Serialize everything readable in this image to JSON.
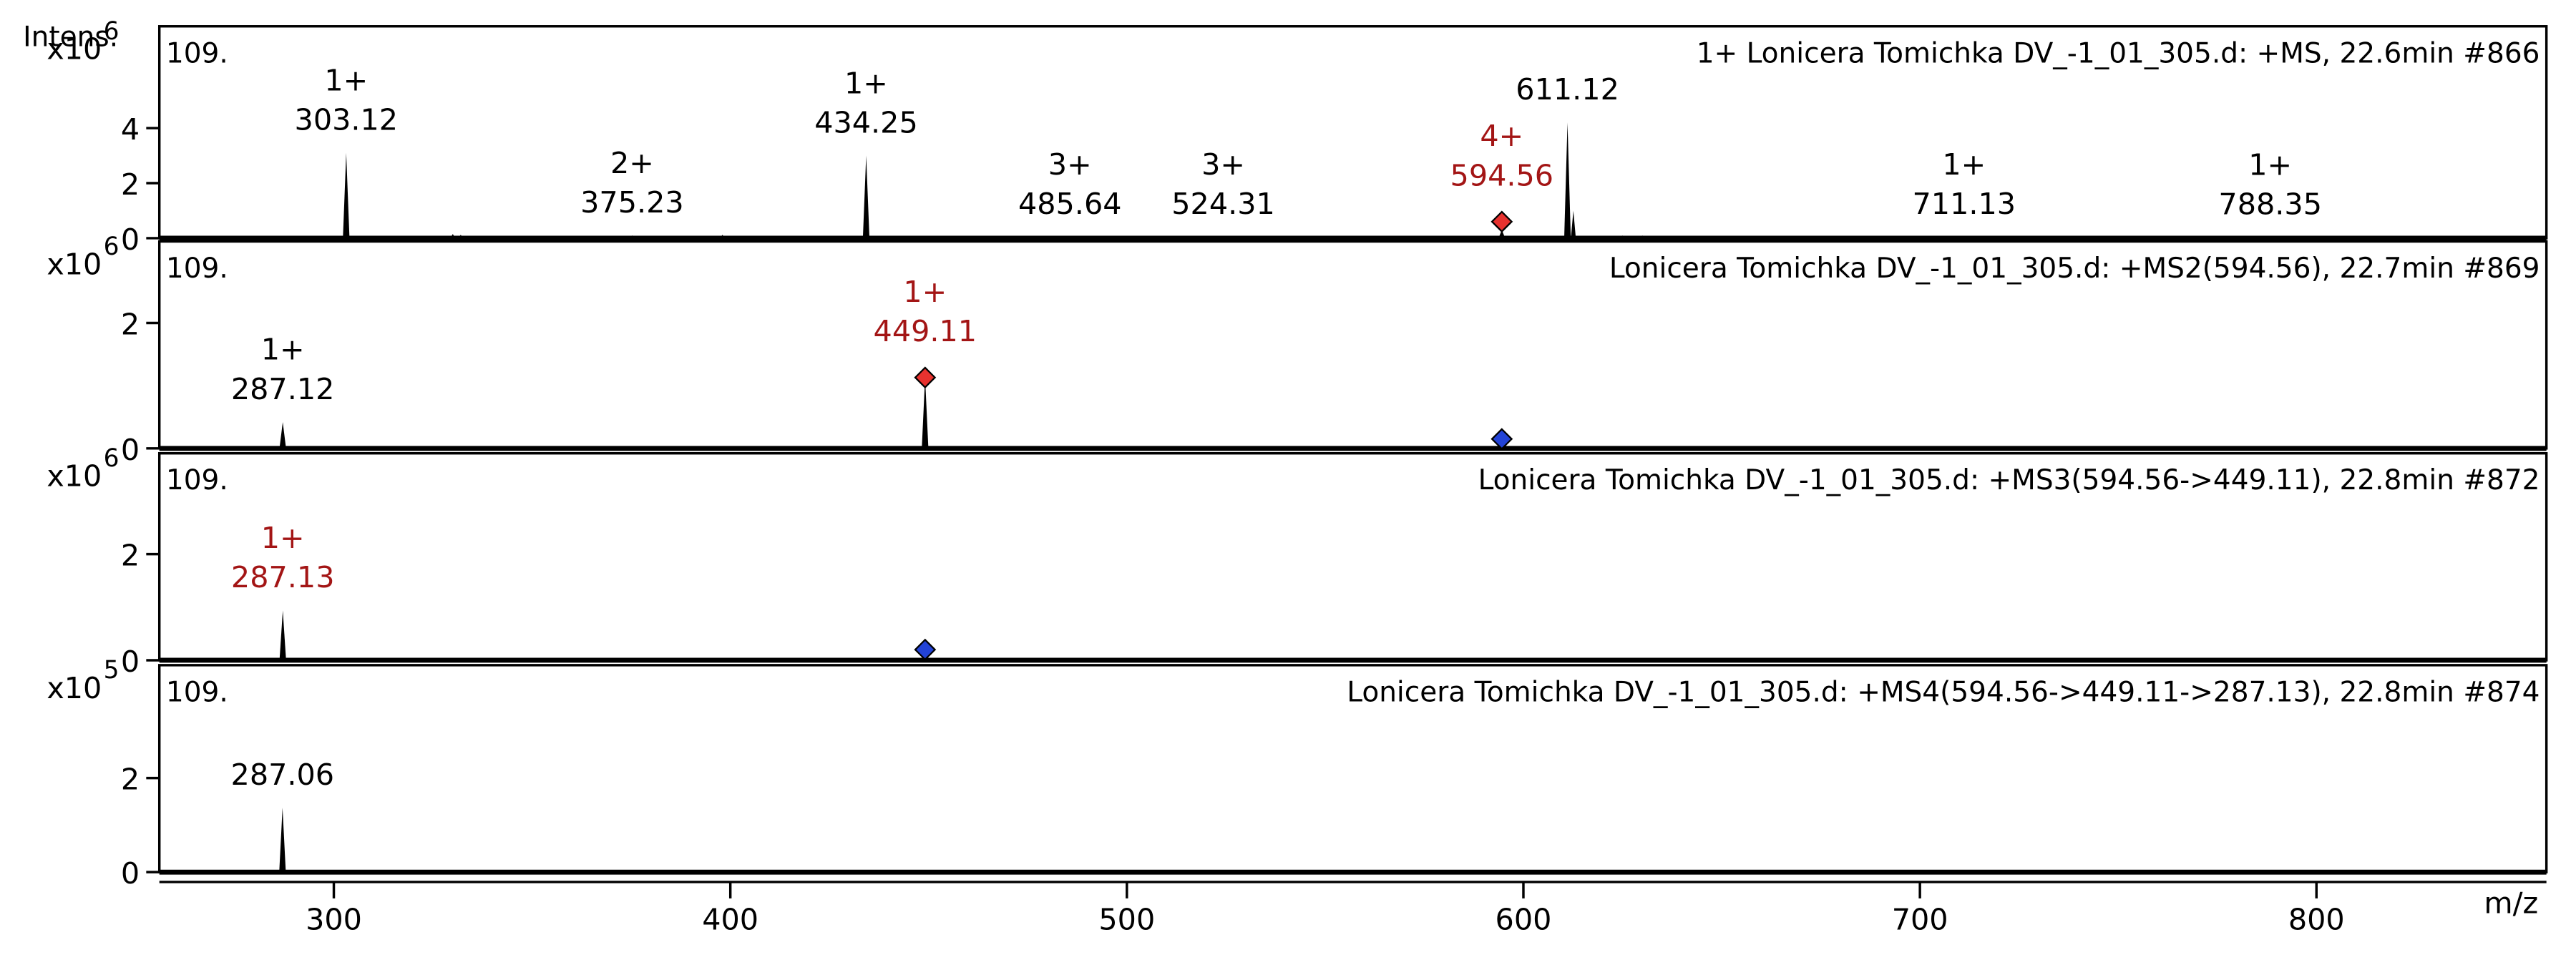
{
  "chart_data": {
    "type": "spectrum",
    "y_label": "Intens.",
    "x_label": "m/z",
    "xlim": [
      256,
      858
    ],
    "xticks": [
      300,
      400,
      500,
      600,
      700,
      800
    ],
    "panels": [
      {
        "title": "1+ Lonicera Tomichka DV_-1_01_305.d: +MS, 22.6min #866",
        "corner_label": "109.",
        "scale_base": "x10",
        "scale_exponent": 6,
        "ylim": [
          0,
          7.7
        ],
        "yticks": [
          0,
          2,
          4
        ],
        "peaks": [
          {
            "mz": 303.12,
            "intensity": 3.1,
            "charge": "1+"
          },
          {
            "mz": 375.23,
            "intensity": 0.1,
            "charge": "2+"
          },
          {
            "mz": 434.25,
            "intensity": 3.0,
            "charge": "1+"
          },
          {
            "mz": 485.64,
            "intensity": 0.05,
            "charge": "3+"
          },
          {
            "mz": 524.31,
            "intensity": 0.05,
            "charge": "3+"
          },
          {
            "mz": 594.56,
            "intensity": 0.3,
            "charge": "4+",
            "label_color": "#a31515"
          },
          {
            "mz": 611.12,
            "intensity": 4.2
          },
          {
            "mz": 711.13,
            "intensity": 0.05,
            "charge": "1+"
          },
          {
            "mz": 788.35,
            "intensity": 0.03,
            "charge": "1+"
          }
        ],
        "minor_peaks": {
          "mz": [
            294,
            330,
            332,
            345,
            361,
            368,
            398,
            440,
            450,
            462,
            480,
            495,
            540,
            556,
            560,
            575,
            585,
            612.6,
            625,
            630,
            648,
            672
          ],
          "intensity": [
            0.08,
            0.15,
            0.12,
            0.06,
            0.06,
            0.08,
            0.12,
            0.08,
            0.06,
            0.05,
            0.06,
            0.05,
            0.05,
            0.06,
            0.06,
            0.05,
            0.05,
            1.0,
            0.1,
            0.1,
            0.06,
            0.05
          ]
        },
        "markers": [
          {
            "mz": 594.56,
            "intensity": 0.6,
            "color": "#e8322f"
          }
        ]
      },
      {
        "title": "Lonicera Tomichka DV_-1_01_305.d: +MS2(594.56), 22.7min #869",
        "corner_label": "109.",
        "scale_base": "x10",
        "scale_exponent": 6,
        "ylim": [
          0,
          3.3
        ],
        "yticks": [
          0,
          2
        ],
        "peaks": [
          {
            "mz": 287.12,
            "intensity": 0.42,
            "charge": "1+"
          },
          {
            "mz": 449.11,
            "intensity": 1.13,
            "charge": "1+",
            "label_color": "#a31515"
          }
        ],
        "markers": [
          {
            "mz": 449.11,
            "intensity": 1.13,
            "color": "#e8322f"
          },
          {
            "mz": 594.56,
            "intensity": 0.15,
            "color": "#2343d6"
          }
        ]
      },
      {
        "title": "Lonicera Tomichka DV_-1_01_305.d: +MS3(594.56->449.11), 22.8min #872",
        "corner_label": "109.",
        "scale_base": "x10",
        "scale_exponent": 6,
        "ylim": [
          0,
          3.9
        ],
        "yticks": [
          0,
          2
        ],
        "peaks": [
          {
            "mz": 287.13,
            "intensity": 0.94,
            "charge": "1+",
            "label_color": "#a31515"
          }
        ],
        "markers": [
          {
            "mz": 449.11,
            "intensity": 0.2,
            "color": "#2343d6"
          }
        ]
      },
      {
        "title": "Lonicera Tomichka DV_-1_01_305.d: +MS4(594.56->449.11->287.13), 22.8min #874",
        "corner_label": "109.",
        "scale_base": "x10",
        "scale_exponent": 5,
        "ylim": [
          0,
          4.4
        ],
        "yticks": [
          0,
          2
        ],
        "peaks": [
          {
            "mz": 287.06,
            "intensity": 1.37
          }
        ]
      }
    ]
  }
}
